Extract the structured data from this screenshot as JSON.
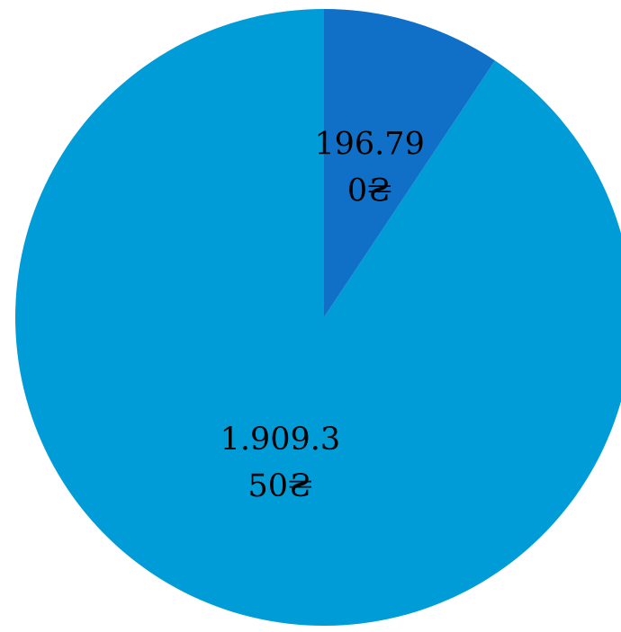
{
  "chart_data": {
    "type": "pie",
    "slices": [
      {
        "value": 196.79,
        "label_lines": [
          "196.79",
          "0₴"
        ],
        "color": "#1070C8"
      },
      {
        "value": 1909.35,
        "label_lines": [
          "1.909.3",
          "50₴"
        ],
        "color": "#009CD8"
      }
    ],
    "title": "",
    "legend": "none",
    "start_angle": "12 o'clock",
    "direction": "clockwise"
  }
}
